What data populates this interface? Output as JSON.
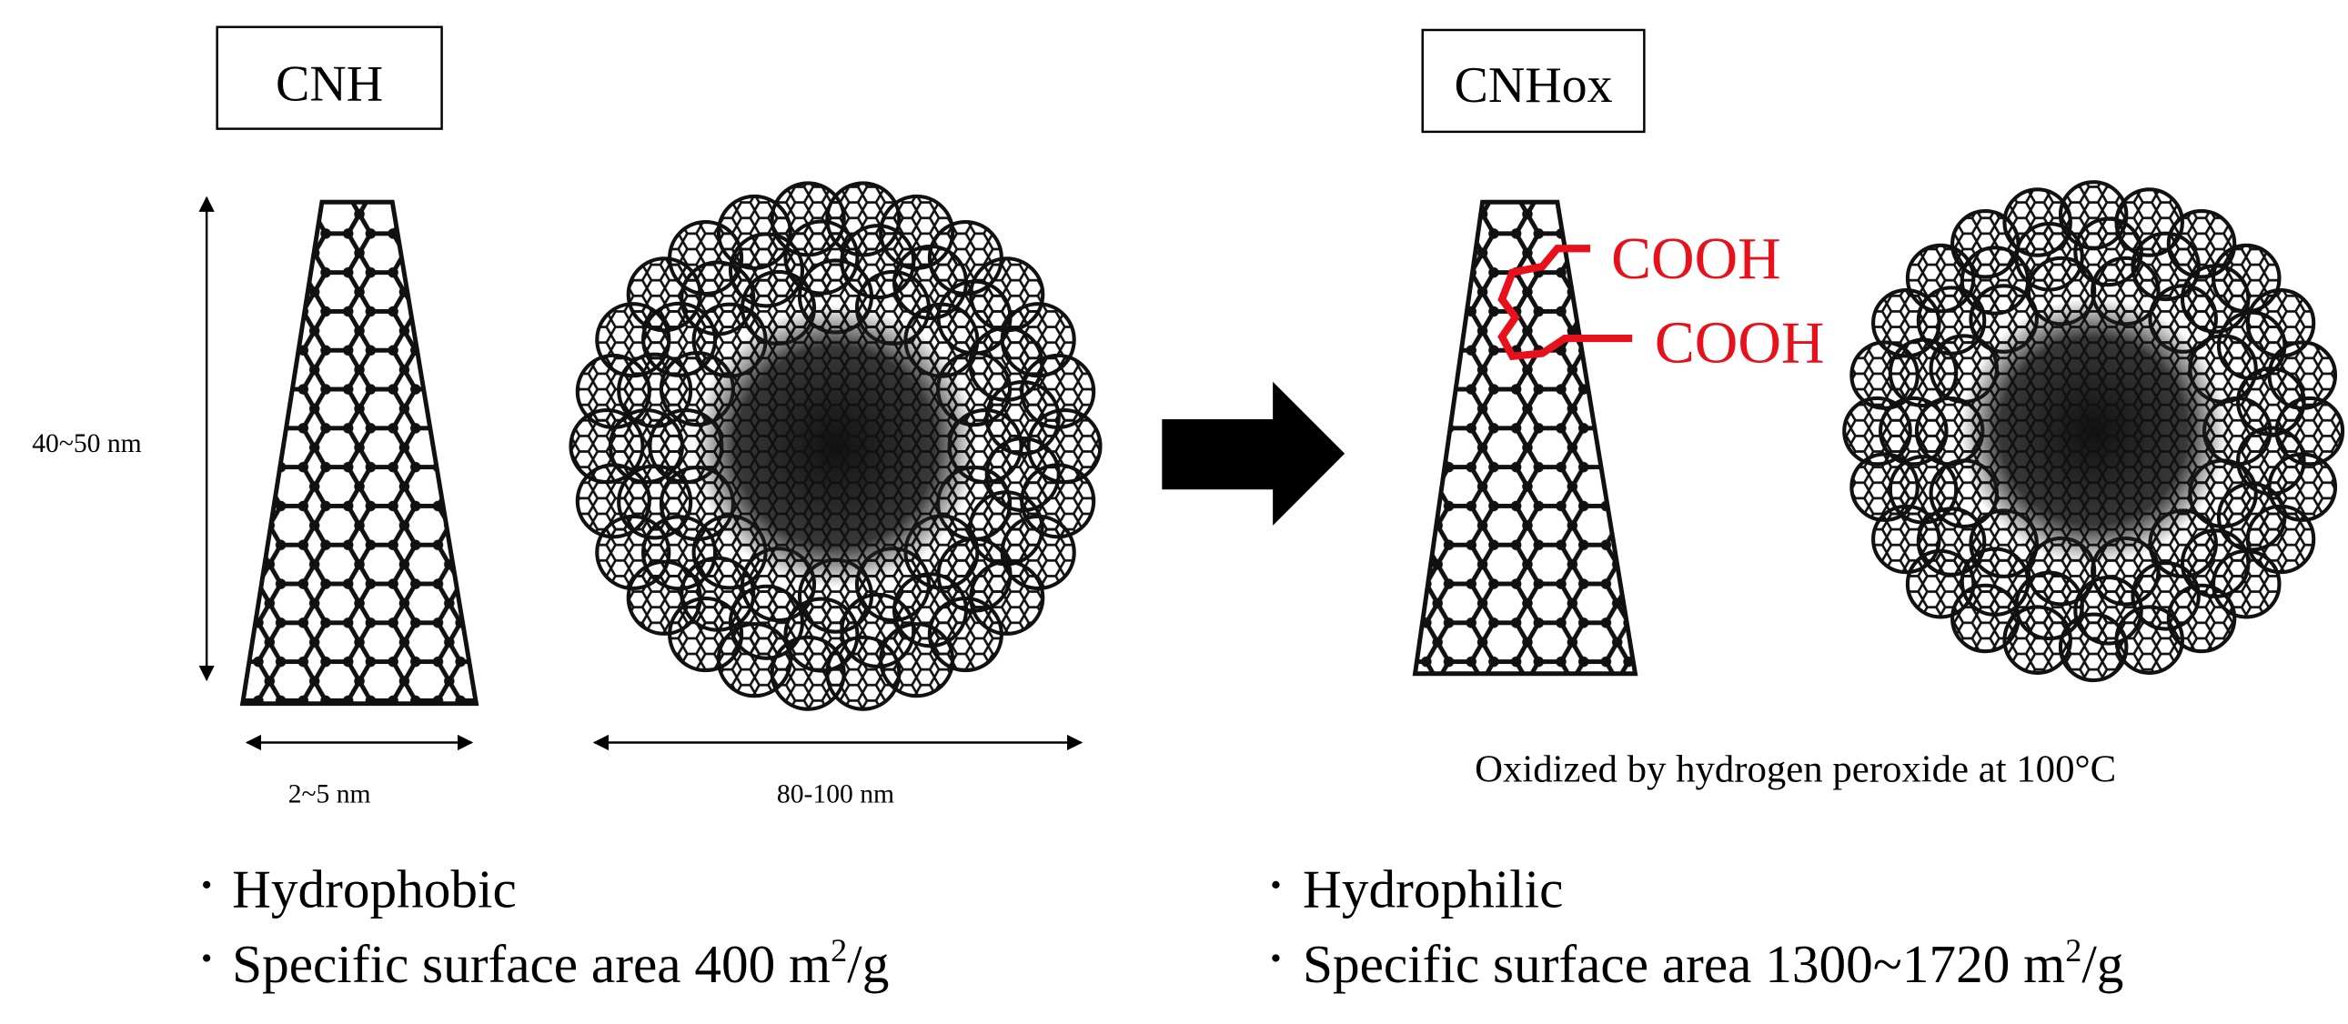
{
  "left": {
    "label": "CNH",
    "height_label": "40~50 nm",
    "width_label": "2~5 nm",
    "diameter_label": "80-100 nm",
    "bullets": [
      {
        "text": "Hydrophobic"
      },
      {
        "text": "Specific surface area 400 m",
        "sup": "2",
        "tail": "/g"
      }
    ]
  },
  "right": {
    "label": "CNHox",
    "groups": [
      "COOH",
      "COOH"
    ],
    "caption": "Oxidized by hydrogen peroxide at 100°C",
    "bullets": [
      {
        "text": "Hydrophilic"
      },
      {
        "text": "Specific surface area 1300~1720 m",
        "sup": "2",
        "tail": "/g"
      }
    ]
  }
}
